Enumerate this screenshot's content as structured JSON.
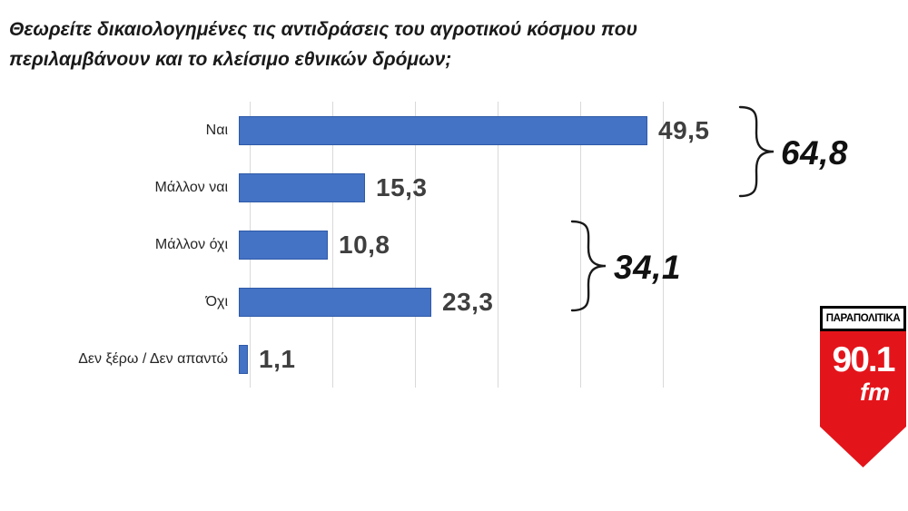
{
  "title": {
    "line1": "Θεωρείτε δικαιολογημένες τις αντιδράσεις του αγροτικού κόσμου που",
    "line2": "περιλαμβάνουν και το κλείσιμο εθνικών δρόμων;"
  },
  "chart_data": {
    "type": "bar",
    "orientation": "horizontal",
    "title": "Θεωρείτε δικαιολογημένες τις αντιδράσεις του αγροτικού κόσμου που περιλαμβάνουν και το κλείσιμο εθνικών δρόμων;",
    "categories": [
      "Ναι",
      "Μάλλον ναι",
      "Μάλλον όχι",
      "Όχι",
      "Δεν ξέρω / Δεν απαντώ"
    ],
    "values": [
      49.5,
      15.3,
      10.8,
      23.3,
      1.1
    ],
    "value_labels": [
      "49,5",
      "15,3",
      "10,8",
      "23,3",
      "1,1"
    ],
    "xlim": [
      0,
      50
    ],
    "grid_interval": 10,
    "grid": true,
    "bar_color": "#4472C4",
    "groups": [
      {
        "label": "64,8",
        "value": 64.8,
        "members": [
          "Ναι",
          "Μάλλον ναι"
        ]
      },
      {
        "label": "34,1",
        "value": 34.1,
        "members": [
          "Μάλλον όχι",
          "Όχι"
        ]
      }
    ]
  },
  "logo": {
    "station": "ΠΑΡΑΠΟΛΙΤΙΚΑ",
    "frequency": "90.1",
    "band": "fm",
    "accent_color": "#e3151b"
  }
}
